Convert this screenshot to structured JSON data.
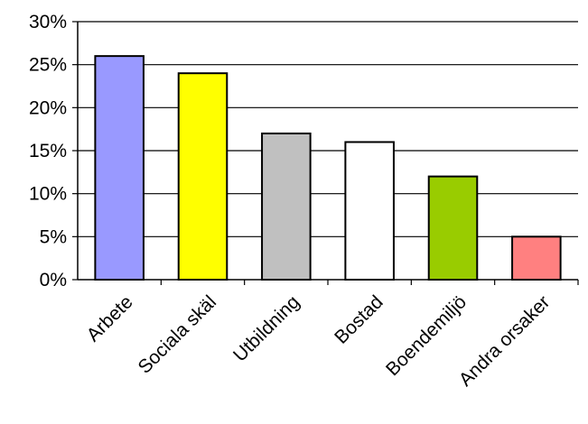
{
  "chart_data": {
    "type": "bar",
    "categories": [
      "Arbete",
      "Sociala skäl",
      "Utbildning",
      "Bostad",
      "Boendemiljö",
      "Andra orsaker"
    ],
    "values": [
      26,
      24,
      17,
      16,
      12,
      5
    ],
    "colors": [
      "#9999ff",
      "#ffff00",
      "#c0c0c0",
      "#ffffff",
      "#99cc00",
      "#ff8080"
    ],
    "yticks": [
      "0%",
      "5%",
      "10%",
      "15%",
      "20%",
      "25%",
      "30%"
    ],
    "ylim": [
      0,
      30
    ],
    "grid": true,
    "legend": "none"
  }
}
